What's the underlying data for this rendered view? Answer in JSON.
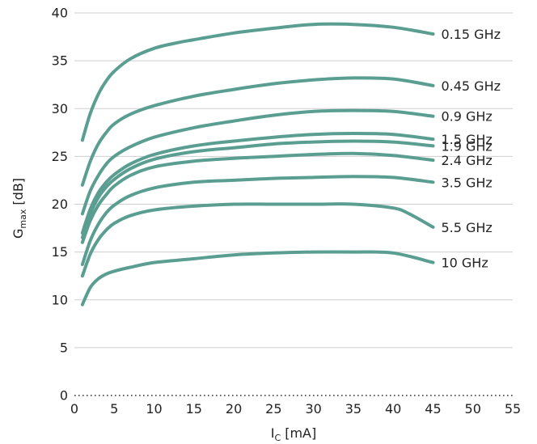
{
  "chart_data": {
    "type": "line",
    "title": "",
    "xlabel": {
      "main": "I",
      "sub": "C",
      "unit": " [mA]"
    },
    "ylabel": {
      "main": "G",
      "sub": "max",
      "unit": " [dB]"
    },
    "xlim": [
      0,
      55
    ],
    "ylim": [
      0,
      40
    ],
    "xticks": [
      0,
      5,
      10,
      15,
      20,
      25,
      30,
      35,
      40,
      45,
      50,
      55
    ],
    "yticks": [
      0,
      5,
      10,
      15,
      20,
      25,
      30,
      35,
      40
    ],
    "grid": "horizontal",
    "line_color": "#5a9e92",
    "series": [
      {
        "name": "0.15 GHz",
        "x": [
          1,
          2,
          3,
          4,
          5,
          7,
          10,
          13,
          15,
          20,
          25,
          30,
          35,
          40,
          45
        ],
        "y": [
          26.7,
          29.5,
          31.5,
          32.9,
          33.9,
          35.2,
          36.3,
          36.9,
          37.2,
          37.9,
          38.4,
          38.8,
          38.8,
          38.5,
          37.8
        ]
      },
      {
        "name": "0.45 GHz",
        "x": [
          1,
          2,
          3,
          4,
          5,
          7,
          10,
          15,
          20,
          25,
          30,
          35,
          40,
          45
        ],
        "y": [
          22.0,
          24.5,
          26.3,
          27.5,
          28.4,
          29.4,
          30.3,
          31.3,
          32.0,
          32.6,
          33.0,
          33.2,
          33.1,
          32.4
        ]
      },
      {
        "name": "0.9 GHz",
        "x": [
          1,
          2,
          3,
          4,
          5,
          7,
          10,
          15,
          20,
          25,
          30,
          35,
          40,
          45
        ],
        "y": [
          19.0,
          21.4,
          23.0,
          24.2,
          25.0,
          26.0,
          27.0,
          28.0,
          28.7,
          29.3,
          29.7,
          29.8,
          29.7,
          29.2
        ]
      },
      {
        "name": "1.5 GHz",
        "x": [
          1,
          2,
          3,
          4,
          5,
          7,
          10,
          15,
          20,
          25,
          30,
          35,
          40,
          45
        ],
        "y": [
          17.0,
          19.5,
          21.2,
          22.3,
          23.1,
          24.2,
          25.2,
          26.1,
          26.6,
          27.0,
          27.3,
          27.4,
          27.3,
          26.8
        ]
      },
      {
        "name": "1.9 GHz",
        "x": [
          1,
          2,
          3,
          4,
          5,
          7,
          10,
          15,
          20,
          25,
          30,
          35,
          40,
          45
        ],
        "y": [
          16.5,
          19.0,
          20.7,
          21.8,
          22.6,
          23.7,
          24.7,
          25.5,
          25.9,
          26.3,
          26.5,
          26.6,
          26.5,
          26.1
        ]
      },
      {
        "name": "2.4 GHz",
        "x": [
          1,
          2,
          3,
          4,
          5,
          7,
          10,
          15,
          20,
          25,
          30,
          35,
          40,
          45
        ],
        "y": [
          16.0,
          18.3,
          19.9,
          21.0,
          21.9,
          23.0,
          23.9,
          24.5,
          24.8,
          25.0,
          25.2,
          25.3,
          25.1,
          24.6
        ]
      },
      {
        "name": "3.5 GHz",
        "x": [
          1,
          2,
          3,
          4,
          5,
          7,
          10,
          15,
          20,
          25,
          30,
          35,
          40,
          45
        ],
        "y": [
          13.7,
          16.2,
          17.9,
          19.1,
          19.9,
          20.9,
          21.7,
          22.3,
          22.5,
          22.7,
          22.8,
          22.9,
          22.8,
          22.3
        ]
      },
      {
        "name": "5.5 GHz",
        "x": [
          1,
          2,
          3,
          4,
          5,
          7,
          10,
          15,
          20,
          25,
          30,
          35,
          40,
          42,
          45
        ],
        "y": [
          12.5,
          14.8,
          16.3,
          17.3,
          18.0,
          18.8,
          19.4,
          19.8,
          20.0,
          20.0,
          20.0,
          20.0,
          19.6,
          19.0,
          17.6
        ]
      },
      {
        "name": "10 GHz",
        "x": [
          1,
          2,
          3,
          4,
          5,
          7,
          10,
          15,
          20,
          25,
          30,
          35,
          40,
          45
        ],
        "y": [
          9.5,
          11.3,
          12.2,
          12.7,
          13.0,
          13.4,
          13.9,
          14.3,
          14.7,
          14.9,
          15.0,
          15.0,
          14.9,
          13.9
        ]
      }
    ]
  }
}
